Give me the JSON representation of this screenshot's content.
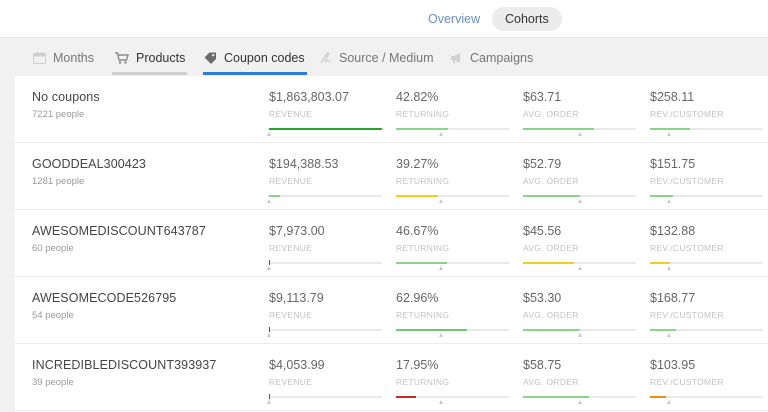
{
  "top_tabs": {
    "overview": "Overview",
    "cohorts": "Cohorts"
  },
  "sub_tabs": [
    {
      "label": "Months",
      "icon": "calendar-icon"
    },
    {
      "label": "Products",
      "icon": "cart-icon"
    },
    {
      "label": "Coupon codes",
      "icon": "tag-icon",
      "active": true
    },
    {
      "label": "Source / Medium",
      "icon": "source-icon"
    },
    {
      "label": "Campaigns",
      "icon": "megaphone-icon"
    }
  ],
  "metric_labels": [
    "REVENUE",
    "RETURNING",
    "AVG. ORDER",
    "REV./CUSTOMER"
  ],
  "colors": {
    "accent": "#2b7cd3",
    "green": "#4caf50",
    "light_green": "#8bd48e",
    "yellow": "#f2cf1d",
    "red": "#c62828",
    "orange": "#f08c1a"
  },
  "rows": [
    {
      "name": "No coupons",
      "people": "7221 people",
      "metrics": [
        {
          "value": "$1,863,803.07",
          "fill": 1.0,
          "color": "#24a52a",
          "avg": 0.0
        },
        {
          "value": "42.82%",
          "fill": 0.46,
          "color": "#8bd48e",
          "avg": 0.4
        },
        {
          "value": "$63.71",
          "fill": 0.63,
          "color": "#8bd48e",
          "avg": 0.5
        },
        {
          "value": "$258.11",
          "fill": 0.35,
          "color": "#8bd48e",
          "avg": 0.17
        }
      ]
    },
    {
      "name": "GOODDEAL300423",
      "people": "1281 people",
      "metrics": [
        {
          "value": "$194,388.53",
          "fill": 0.1,
          "color": "#8bd48e",
          "avg": 0.0
        },
        {
          "value": "39.27%",
          "fill": 0.37,
          "color": "#f2cf1d",
          "avg": 0.4
        },
        {
          "value": "$52.79",
          "fill": 0.5,
          "color": "#8bd48e",
          "avg": 0.5
        },
        {
          "value": "$151.75",
          "fill": 0.2,
          "color": "#8bd48e",
          "avg": 0.17
        }
      ]
    },
    {
      "name": "AWESOMEDISCOUNT643787",
      "people": "60 people",
      "metrics": [
        {
          "value": "$7,973.00",
          "fill": 0.01,
          "color": "#555555",
          "avg": 0.0
        },
        {
          "value": "46.67%",
          "fill": 0.45,
          "color": "#8bd48e",
          "avg": 0.4
        },
        {
          "value": "$45.56",
          "fill": 0.45,
          "color": "#f2cf1d",
          "avg": 0.5
        },
        {
          "value": "$132.88",
          "fill": 0.18,
          "color": "#f2cf1d",
          "avg": 0.17
        }
      ]
    },
    {
      "name": "AWESOMECODE526795",
      "people": "54 people",
      "metrics": [
        {
          "value": "$9,113.79",
          "fill": 0.01,
          "color": "#555555",
          "avg": 0.0
        },
        {
          "value": "62.96%",
          "fill": 0.63,
          "color": "#6cc66f",
          "avg": 0.4
        },
        {
          "value": "$53.30",
          "fill": 0.5,
          "color": "#8bd48e",
          "avg": 0.5
        },
        {
          "value": "$168.77",
          "fill": 0.23,
          "color": "#8bd48e",
          "avg": 0.17
        }
      ]
    },
    {
      "name": "INCREDIBLEDISCOUNT393937",
      "people": "39 people",
      "metrics": [
        {
          "value": "$4,053.99",
          "fill": 0.01,
          "color": "#555555",
          "avg": 0.0
        },
        {
          "value": "17.95%",
          "fill": 0.18,
          "color": "#c62828",
          "avg": 0.4
        },
        {
          "value": "$58.75",
          "fill": 0.58,
          "color": "#8bd48e",
          "avg": 0.5
        },
        {
          "value": "$103.95",
          "fill": 0.14,
          "color": "#f08c1a",
          "avg": 0.17
        }
      ]
    }
  ]
}
